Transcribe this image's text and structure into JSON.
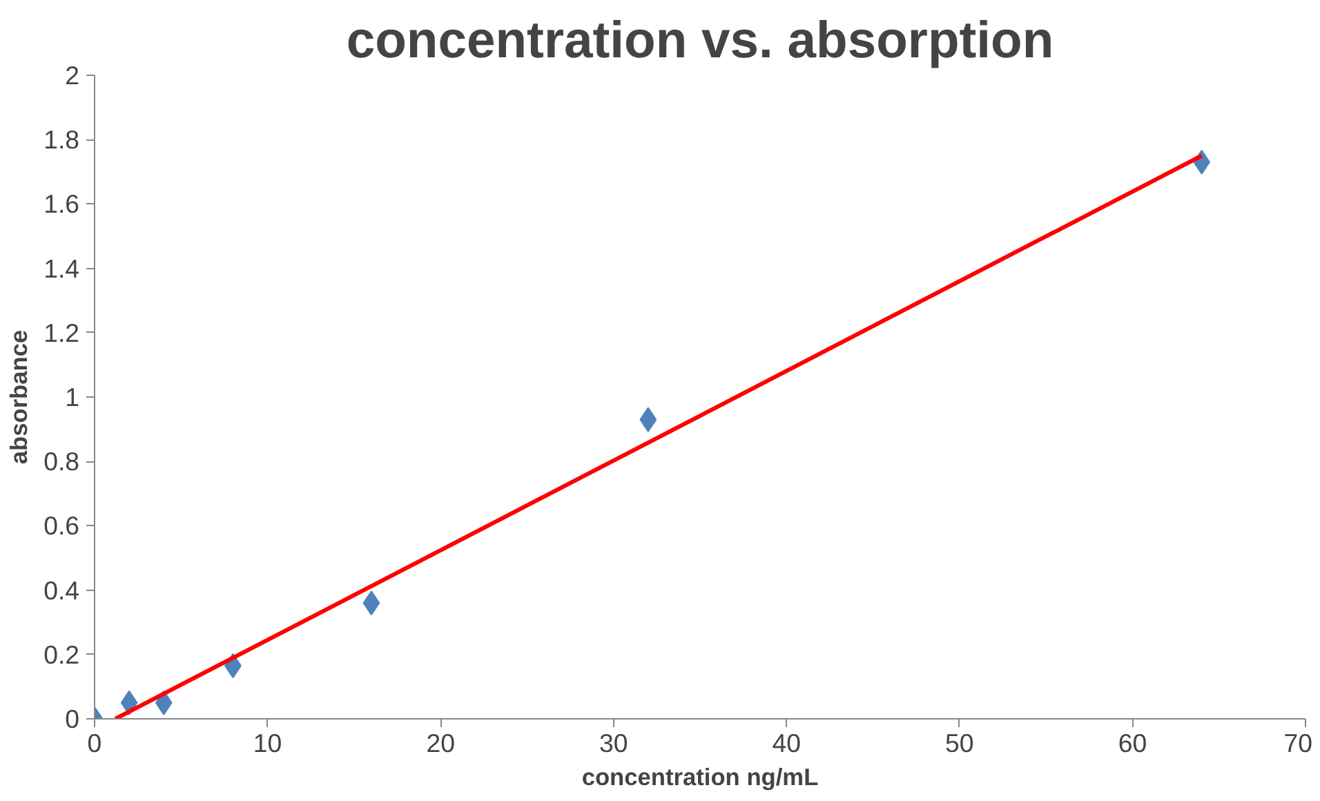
{
  "chart_data": {
    "type": "scatter",
    "title": "concentration vs. absorption",
    "xlabel": "concentration ng/mL",
    "ylabel": "absorbance",
    "xlim": [
      0,
      70
    ],
    "ylim": [
      0,
      2
    ],
    "xticks": [
      0,
      10,
      20,
      30,
      40,
      50,
      60,
      70
    ],
    "yticks": [
      0,
      0.2,
      0.4,
      0.6,
      0.8,
      1,
      1.2,
      1.4,
      1.6,
      1.8,
      2
    ],
    "grid": false,
    "marker": "diamond",
    "series": [
      {
        "color": "#4f81bd",
        "x": [
          0,
          2,
          4,
          8,
          16,
          32,
          64
        ],
        "values": [
          0.0,
          0.05,
          0.05,
          0.165,
          0.36,
          0.93,
          1.73
        ]
      },
      {
        "type": "line",
        "color": "#ff0000",
        "line_style": "solid",
        "marker": "none",
        "x": [
          1.2,
          64
        ],
        "values": [
          0,
          1.75
        ]
      }
    ]
  }
}
